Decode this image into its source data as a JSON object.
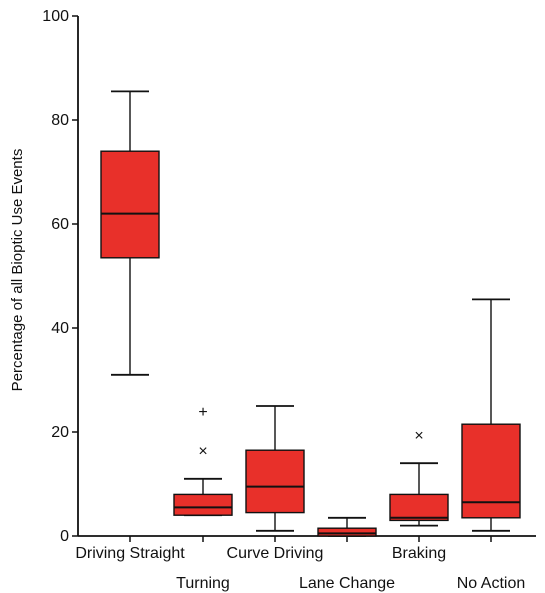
{
  "chart_data": {
    "type": "box",
    "ylabel": "Percentage of all Bioptic Use Events",
    "ylim": [
      0,
      100
    ],
    "yticks": [
      0,
      20,
      40,
      60,
      80,
      100
    ],
    "grid": false,
    "legend": "none",
    "box_color": "#e8302a",
    "categories": [
      "Driving Straight",
      "Turning",
      "Curve Driving",
      "Lane Change",
      "Braking",
      "No Action"
    ],
    "boxes": [
      {
        "label": "Driving Straight",
        "min": 31,
        "q1": 53.5,
        "median": 62,
        "q3": 74,
        "max": 85.5,
        "outliers": []
      },
      {
        "label": "Turning",
        "min": 4,
        "q1": 4,
        "median": 5.5,
        "q3": 8,
        "max": 11,
        "outliers": [
          {
            "value": 24,
            "marker": "+"
          },
          {
            "value": 16.5,
            "marker": "×"
          }
        ]
      },
      {
        "label": "Curve Driving",
        "min": 1,
        "q1": 4.5,
        "median": 9.5,
        "q3": 16.5,
        "max": 25,
        "outliers": []
      },
      {
        "label": "Lane Change",
        "min": 0,
        "q1": 0,
        "median": 0.5,
        "q3": 1.5,
        "max": 3.5,
        "outliers": []
      },
      {
        "label": "Braking",
        "min": 2,
        "q1": 3,
        "median": 3.5,
        "q3": 8,
        "max": 14,
        "outliers": [
          {
            "value": 19.5,
            "marker": "×"
          }
        ]
      },
      {
        "label": "No Action",
        "min": 1,
        "q1": 3.5,
        "median": 6.5,
        "q3": 21.5,
        "max": 45.5,
        "outliers": []
      }
    ]
  }
}
